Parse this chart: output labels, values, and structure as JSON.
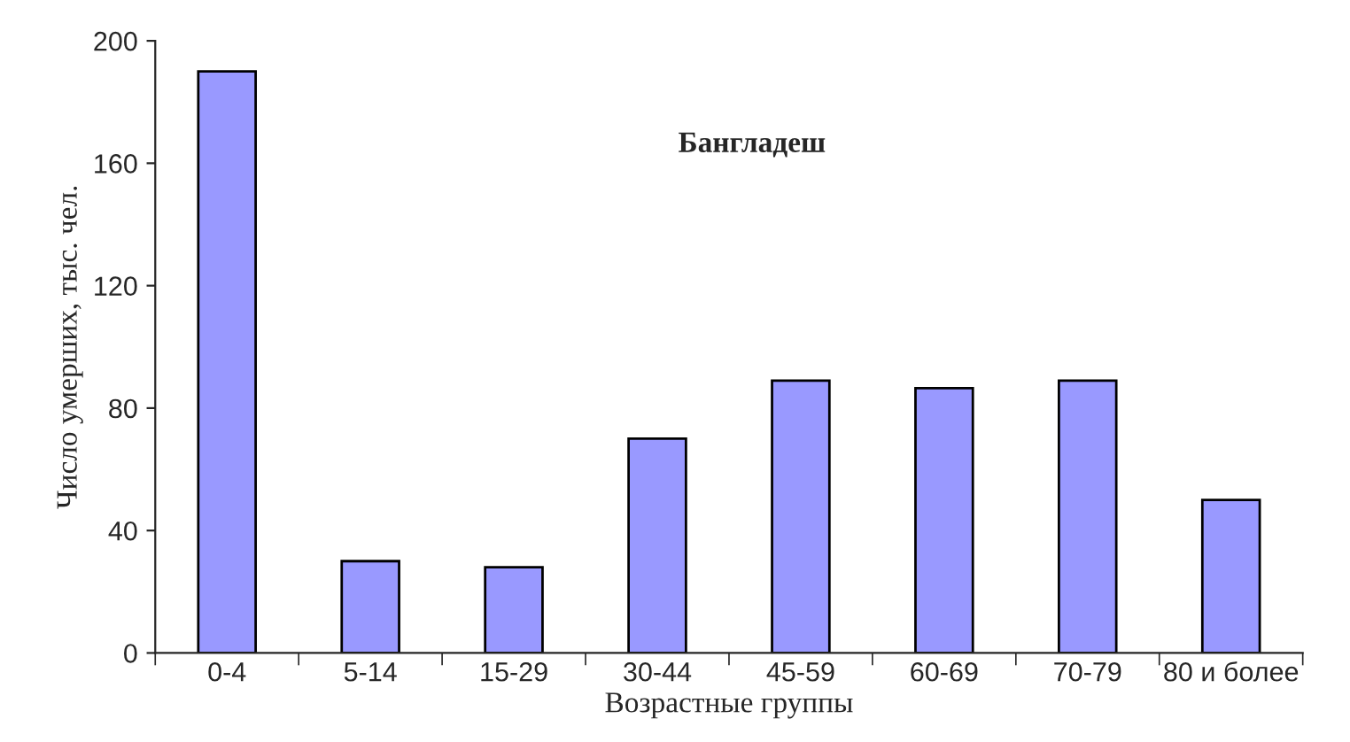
{
  "chart_data": {
    "type": "bar",
    "title": "Бангладеш",
    "xlabel": "Возрастные группы",
    "ylabel": "Число умерших, тыс. чел.",
    "categories": [
      "0-4",
      "5-14",
      "15-29",
      "30-44",
      "45-59",
      "60-69",
      "70-79",
      "80 и более"
    ],
    "values": [
      190,
      30,
      28,
      70,
      89,
      86.5,
      89,
      50
    ],
    "color": "#9999ff",
    "ylim": [
      0,
      200
    ],
    "yticks": [
      0,
      40,
      80,
      120,
      160,
      200
    ],
    "grid": false,
    "legend": false
  }
}
